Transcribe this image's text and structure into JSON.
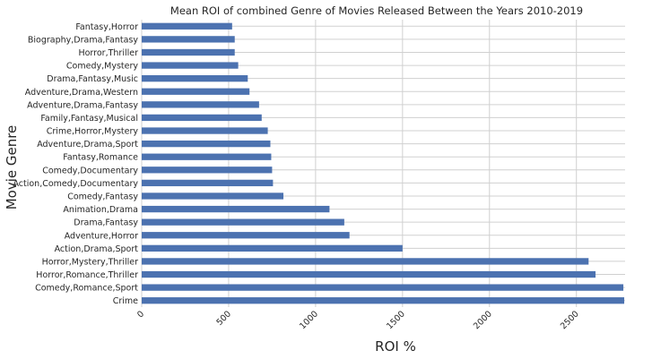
{
  "chart_data": {
    "type": "bar",
    "orientation": "horizontal",
    "title": "Mean ROI of combined Genre of Movies Released Between the Years 2010-2019",
    "xlabel": "ROI %",
    "ylabel": "Movie Genre",
    "xlim": [
      0,
      2780
    ],
    "xticks": [
      0,
      500,
      1000,
      1500,
      2000,
      2500
    ],
    "grid": true,
    "bar_color": "#4c72b0",
    "categories": [
      "Crime",
      "Comedy,Romance,Sport",
      "Horror,Romance,Thriller",
      "Horror,Mystery,Thriller",
      "Action,Drama,Sport",
      "Adventure,Horror",
      "Drama,Fantasy",
      "Animation,Drama",
      "Comedy,Fantasy",
      "Action,Comedy,Documentary",
      "Comedy,Documentary",
      "Fantasy,Romance",
      "Adventure,Drama,Sport",
      "Crime,Horror,Mystery",
      "Family,Fantasy,Musical",
      "Adventure,Drama,Fantasy",
      "Adventure,Drama,Western",
      "Drama,Fantasy,Music",
      "Comedy,Mystery",
      "Horror,Thriller",
      "Biography,Drama,Fantasy",
      "Fantasy,Horror"
    ],
    "values": [
      2775,
      2770,
      2610,
      2570,
      1500,
      1195,
      1165,
      1080,
      815,
      755,
      750,
      745,
      740,
      725,
      690,
      675,
      620,
      610,
      555,
      535,
      535,
      520
    ]
  }
}
